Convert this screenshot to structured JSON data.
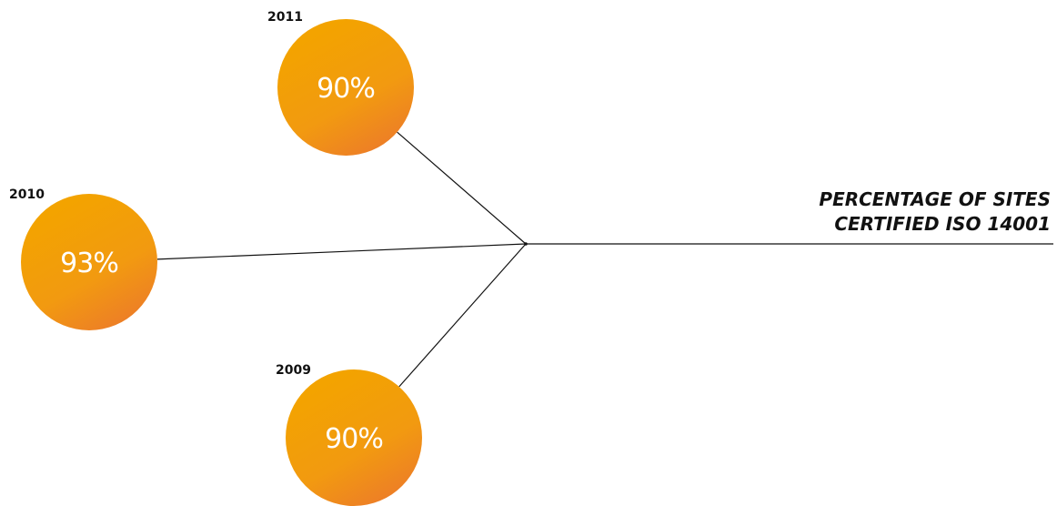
{
  "chart_data": {
    "type": "bubble",
    "title_lines": [
      "PERCENTAGE OF SITES",
      "CERTIFIED ISO 14001"
    ],
    "categories": [
      "2011",
      "2010",
      "2009"
    ],
    "values": [
      90,
      93,
      90
    ],
    "value_labels": [
      "90%",
      "93%",
      "90%"
    ]
  },
  "colors": {
    "bubble_top": "#f3a300",
    "bubble_bottom": "#ec7a2a",
    "line": "#111111"
  }
}
